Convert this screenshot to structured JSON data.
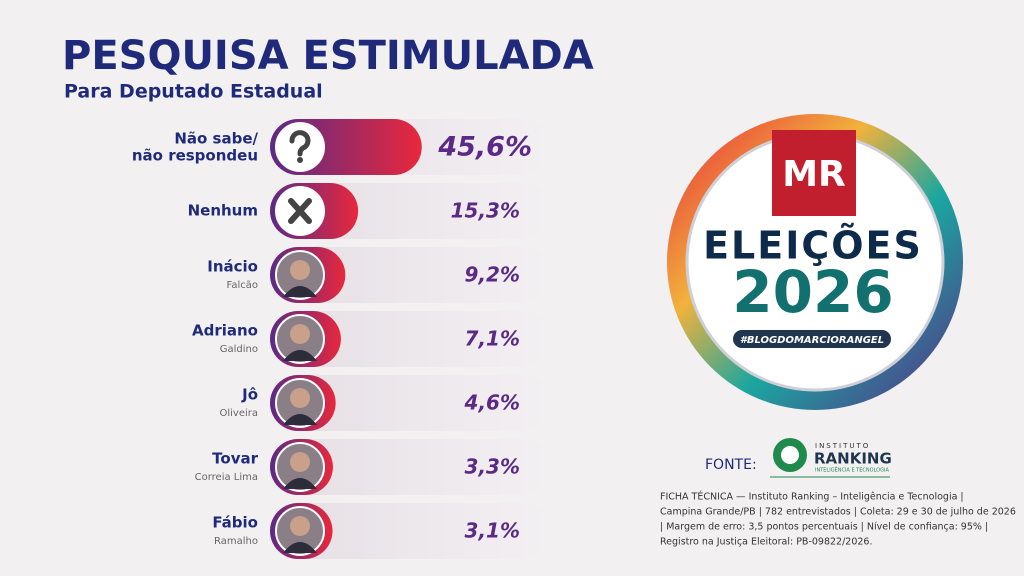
{
  "chart_data": {
    "type": "bar",
    "orientation": "horizontal",
    "title": "PESQUISA ESTIMULADA",
    "subtitle": "Para Deputado Estadual",
    "categories": [
      "Não sabe/",
      "Nenhum",
      "Inácio",
      "Adriano",
      "Jô",
      "Tovar",
      "Fábio"
    ],
    "category_sublabels": [
      "não respondeu",
      null,
      "Falcão",
      "Galdino",
      "Oliveira",
      "Correia Lima",
      "Ramalho"
    ],
    "values": [
      45.6,
      15.3,
      9.2,
      7.1,
      4.6,
      3.3,
      3.1
    ],
    "value_labels": [
      "45,6%",
      "15,3%",
      "9,2%",
      "7,1%",
      "4,6%",
      "3,3%",
      "3,1%"
    ],
    "color": "#e8283c",
    "color_end": "#5b2a86"
  },
  "logo": {
    "mark": "MR",
    "line1": "ELEIÇÕES",
    "line2": "2026",
    "tag": "#BLOGDOMARCIORANGEL"
  },
  "source": {
    "label": "FONTE:",
    "small": "INSTITUTO",
    "name": "RANKING",
    "tagline": "INTELIGÊNCIA E TECNOLOGIA"
  },
  "notes": [
    "FICHA TÉCNICA — Instituto Ranking – Inteligência e Tecnologia |",
    "Campina Grande/PB | 782 entrevistados | Coleta: 29 e 30 de julho de 2026",
    "| Margem de erro: 3,5 pontos percentuais | Nível de confiança: 95% |",
    "Registro na Justiça Eleitoral: PB-09822/2026."
  ]
}
